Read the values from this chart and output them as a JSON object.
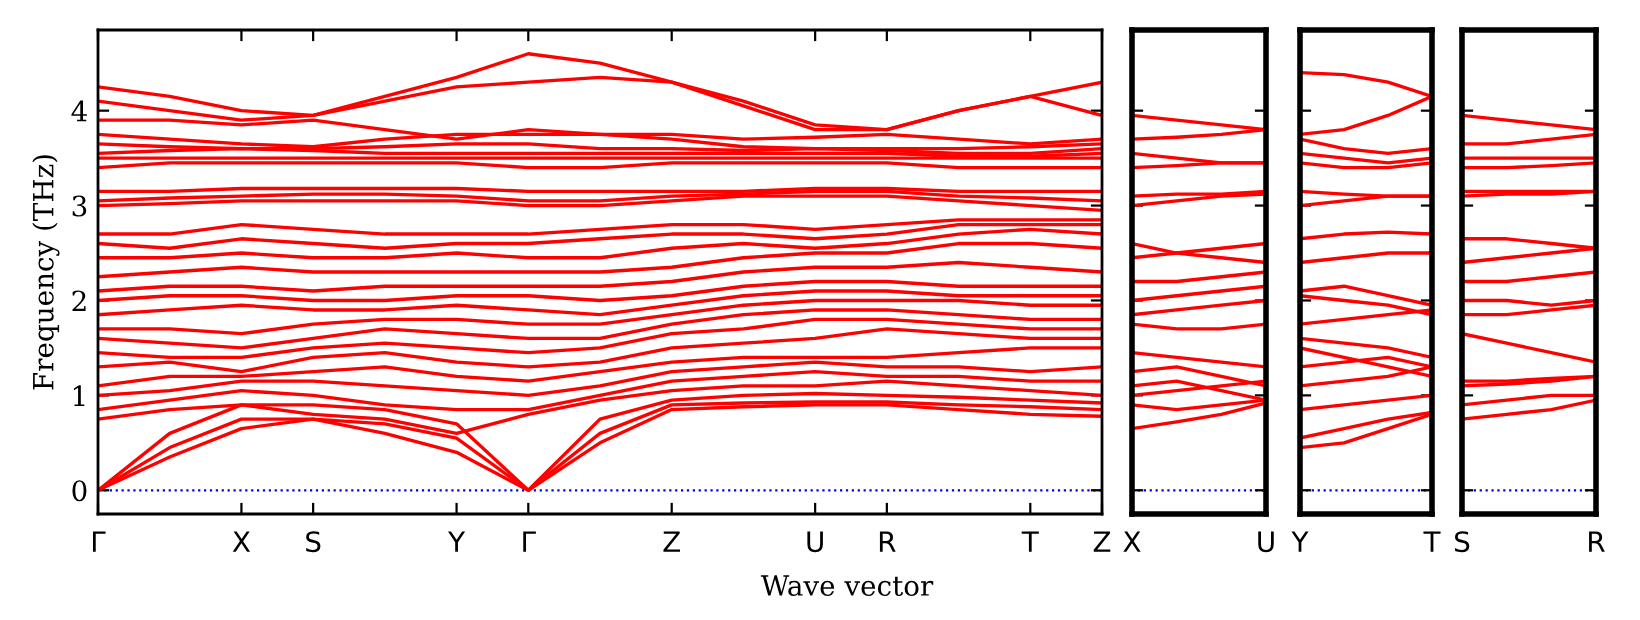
{
  "chart_data": [
    {
      "type": "line",
      "ylabel": "Frequency (THz)",
      "xlabel": "Wave vector",
      "ylim": [
        -0.25,
        4.85
      ],
      "yticks": [
        0,
        1,
        2,
        3,
        4
      ],
      "categories": [
        "Γ",
        null,
        "X",
        "S",
        null,
        "Y",
        "Γ",
        null,
        "Z",
        null,
        "U",
        "R",
        null,
        "T",
        "Z"
      ],
      "ref_lines": [
        {
          "axis": "y",
          "value": 0,
          "color": "#0000ff",
          "line_style": "dotted"
        }
      ],
      "grid": false,
      "legend": false,
      "marker": "none",
      "line_style": "solid",
      "series": [
        {
          "color": "#ff0000",
          "values": [
            0,
            0.35,
            0.65,
            0.75,
            0.6,
            0.4,
            0,
            0.5,
            0.85,
            0.88,
            0.9,
            0.9,
            0.85,
            0.8,
            0.78
          ]
        },
        {
          "color": "#ff0000",
          "values": [
            0,
            0.45,
            0.75,
            0.75,
            0.7,
            0.55,
            0,
            0.6,
            0.9,
            0.92,
            0.93,
            0.93,
            0.9,
            0.88,
            0.85
          ]
        },
        {
          "color": "#ff0000",
          "values": [
            0,
            0.6,
            0.9,
            0.9,
            0.85,
            0.7,
            0,
            0.75,
            0.95,
            1.0,
            1.02,
            1.0,
            0.98,
            0.95,
            0.92
          ]
        },
        {
          "color": "#ff0000",
          "values": [
            0.75,
            0.85,
            0.9,
            0.8,
            0.75,
            0.6,
            0.8,
            0.95,
            1.05,
            1.1,
            1.1,
            1.15,
            1.1,
            1.05,
            1.0
          ]
        },
        {
          "color": "#ff0000",
          "values": [
            0.85,
            0.95,
            1.05,
            1.0,
            0.9,
            0.85,
            0.85,
            1.0,
            1.15,
            1.2,
            1.25,
            1.2,
            1.2,
            1.15,
            1.15
          ]
        },
        {
          "color": "#ff0000",
          "values": [
            1.0,
            1.05,
            1.15,
            1.15,
            1.1,
            1.05,
            1.0,
            1.1,
            1.25,
            1.3,
            1.35,
            1.3,
            1.3,
            1.25,
            1.3
          ]
        },
        {
          "color": "#ff0000",
          "values": [
            1.1,
            1.2,
            1.2,
            1.25,
            1.3,
            1.2,
            1.15,
            1.25,
            1.35,
            1.4,
            1.4,
            1.4,
            1.45,
            1.5,
            1.5
          ]
        },
        {
          "color": "#ff0000",
          "values": [
            1.3,
            1.35,
            1.25,
            1.4,
            1.45,
            1.35,
            1.3,
            1.35,
            1.5,
            1.55,
            1.6,
            1.7,
            1.65,
            1.6,
            1.6
          ]
        },
        {
          "color": "#ff0000",
          "values": [
            1.45,
            1.4,
            1.4,
            1.5,
            1.55,
            1.5,
            1.45,
            1.5,
            1.65,
            1.7,
            1.8,
            1.8,
            1.75,
            1.7,
            1.7
          ]
        },
        {
          "color": "#ff0000",
          "values": [
            1.6,
            1.55,
            1.5,
            1.6,
            1.7,
            1.65,
            1.6,
            1.6,
            1.75,
            1.85,
            1.9,
            1.9,
            1.85,
            1.8,
            1.8
          ]
        },
        {
          "color": "#ff0000",
          "values": [
            1.7,
            1.7,
            1.65,
            1.75,
            1.8,
            1.8,
            1.75,
            1.75,
            1.85,
            1.95,
            2.0,
            2.0,
            2.0,
            1.95,
            1.95
          ]
        },
        {
          "color": "#ff0000",
          "values": [
            1.85,
            1.9,
            1.95,
            1.9,
            1.9,
            1.95,
            1.9,
            1.85,
            1.95,
            2.05,
            2.1,
            2.1,
            2.05,
            2.05,
            2.05
          ]
        },
        {
          "color": "#ff0000",
          "values": [
            2.0,
            2.05,
            2.05,
            2.0,
            2.0,
            2.05,
            2.05,
            2.0,
            2.05,
            2.15,
            2.2,
            2.2,
            2.15,
            2.15,
            2.15
          ]
        },
        {
          "color": "#ff0000",
          "values": [
            2.1,
            2.15,
            2.15,
            2.1,
            2.15,
            2.15,
            2.15,
            2.15,
            2.2,
            2.3,
            2.35,
            2.35,
            2.4,
            2.35,
            2.3
          ]
        },
        {
          "color": "#ff0000",
          "values": [
            2.25,
            2.3,
            2.35,
            2.3,
            2.3,
            2.3,
            2.3,
            2.3,
            2.35,
            2.45,
            2.5,
            2.5,
            2.6,
            2.6,
            2.55
          ]
        },
        {
          "color": "#ff0000",
          "values": [
            2.45,
            2.45,
            2.5,
            2.45,
            2.45,
            2.5,
            2.45,
            2.45,
            2.55,
            2.6,
            2.55,
            2.6,
            2.7,
            2.75,
            2.7
          ]
        },
        {
          "color": "#ff0000",
          "values": [
            2.6,
            2.55,
            2.65,
            2.6,
            2.55,
            2.6,
            2.6,
            2.65,
            2.7,
            2.7,
            2.65,
            2.7,
            2.8,
            2.8,
            2.8
          ]
        },
        {
          "color": "#ff0000",
          "values": [
            2.7,
            2.7,
            2.8,
            2.75,
            2.7,
            2.7,
            2.7,
            2.75,
            2.8,
            2.8,
            2.75,
            2.8,
            2.85,
            2.85,
            2.85
          ]
        },
        {
          "color": "#ff0000",
          "values": [
            3.0,
            3.02,
            3.05,
            3.05,
            3.05,
            3.05,
            3.0,
            3.0,
            3.05,
            3.1,
            3.1,
            3.1,
            3.05,
            3.0,
            2.95
          ]
        },
        {
          "color": "#ff0000",
          "values": [
            3.05,
            3.08,
            3.1,
            3.12,
            3.12,
            3.1,
            3.05,
            3.05,
            3.1,
            3.12,
            3.15,
            3.15,
            3.1,
            3.08,
            3.05
          ]
        },
        {
          "color": "#ff0000",
          "values": [
            3.15,
            3.15,
            3.18,
            3.18,
            3.18,
            3.18,
            3.15,
            3.15,
            3.15,
            3.15,
            3.18,
            3.18,
            3.15,
            3.15,
            3.15
          ]
        },
        {
          "color": "#ff0000",
          "values": [
            3.4,
            3.45,
            3.45,
            3.45,
            3.45,
            3.45,
            3.4,
            3.4,
            3.45,
            3.45,
            3.45,
            3.45,
            3.4,
            3.4,
            3.4
          ]
        },
        {
          "color": "#ff0000",
          "values": [
            3.5,
            3.5,
            3.5,
            3.5,
            3.5,
            3.5,
            3.5,
            3.5,
            3.5,
            3.5,
            3.5,
            3.5,
            3.5,
            3.5,
            3.5
          ]
        },
        {
          "color": "#ff0000",
          "values": [
            3.55,
            3.58,
            3.6,
            3.58,
            3.55,
            3.55,
            3.55,
            3.55,
            3.55,
            3.55,
            3.55,
            3.55,
            3.52,
            3.52,
            3.55
          ]
        },
        {
          "color": "#ff0000",
          "values": [
            3.65,
            3.62,
            3.6,
            3.6,
            3.62,
            3.65,
            3.65,
            3.6,
            3.6,
            3.58,
            3.6,
            3.58,
            3.55,
            3.55,
            3.6
          ]
        },
        {
          "color": "#ff0000",
          "values": [
            3.75,
            3.7,
            3.65,
            3.62,
            3.7,
            3.75,
            3.75,
            3.75,
            3.7,
            3.62,
            3.6,
            3.6,
            3.6,
            3.62,
            3.65
          ]
        },
        {
          "color": "#ff0000",
          "values": [
            3.9,
            3.9,
            3.85,
            3.9,
            3.8,
            3.7,
            3.8,
            3.75,
            3.75,
            3.7,
            3.72,
            3.75,
            3.7,
            3.65,
            3.7
          ]
        },
        {
          "color": "#ff0000",
          "values": [
            4.1,
            4.0,
            3.9,
            3.95,
            4.1,
            4.25,
            4.3,
            4.35,
            4.3,
            4.05,
            3.8,
            3.8,
            4.0,
            4.15,
            3.95
          ]
        },
        {
          "color": "#ff0000",
          "values": [
            4.25,
            4.15,
            4.0,
            3.95,
            4.15,
            4.35,
            4.6,
            4.5,
            4.3,
            4.1,
            3.85,
            3.8,
            4.0,
            4.15,
            4.3
          ]
        }
      ]
    },
    {
      "type": "line",
      "ylim": [
        -0.25,
        4.85
      ],
      "tick_labels": "x",
      "categories": [
        "X",
        null,
        null,
        "U"
      ],
      "ref_lines": [
        {
          "axis": "y",
          "value": 0,
          "color": "#0000ff",
          "line_style": "dotted"
        }
      ],
      "grid": false,
      "legend": false,
      "marker": "none",
      "line_style": "solid",
      "series": [
        {
          "color": "#ff0000",
          "values": [
            0.65,
            0.72,
            0.8,
            0.92
          ]
        },
        {
          "color": "#ff0000",
          "values": [
            0.9,
            0.85,
            0.9,
            0.95
          ]
        },
        {
          "color": "#ff0000",
          "values": [
            1.0,
            1.05,
            1.1,
            1.15
          ]
        },
        {
          "color": "#ff0000",
          "values": [
            1.1,
            1.15,
            1.05,
            0.95
          ]
        },
        {
          "color": "#ff0000",
          "values": [
            1.25,
            1.3,
            1.2,
            1.1
          ]
        },
        {
          "color": "#ff0000",
          "values": [
            1.45,
            1.4,
            1.35,
            1.3
          ]
        },
        {
          "color": "#ff0000",
          "values": [
            1.75,
            1.7,
            1.7,
            1.75
          ]
        },
        {
          "color": "#ff0000",
          "values": [
            1.85,
            1.9,
            1.95,
            2.0
          ]
        },
        {
          "color": "#ff0000",
          "values": [
            2.0,
            2.05,
            2.1,
            2.15
          ]
        },
        {
          "color": "#ff0000",
          "values": [
            2.2,
            2.2,
            2.25,
            2.3
          ]
        },
        {
          "color": "#ff0000",
          "values": [
            2.45,
            2.5,
            2.55,
            2.6
          ]
        },
        {
          "color": "#ff0000",
          "values": [
            2.6,
            2.5,
            2.45,
            2.4
          ]
        },
        {
          "color": "#ff0000",
          "values": [
            3.0,
            3.05,
            3.1,
            3.12
          ]
        },
        {
          "color": "#ff0000",
          "values": [
            3.1,
            3.12,
            3.12,
            3.15
          ]
        },
        {
          "color": "#ff0000",
          "values": [
            3.4,
            3.42,
            3.45,
            3.45
          ]
        },
        {
          "color": "#ff0000",
          "values": [
            3.55,
            3.5,
            3.45,
            3.45
          ]
        },
        {
          "color": "#ff0000",
          "values": [
            3.7,
            3.72,
            3.75,
            3.8
          ]
        },
        {
          "color": "#ff0000",
          "values": [
            3.95,
            3.9,
            3.85,
            3.8
          ]
        }
      ]
    },
    {
      "type": "line",
      "ylim": [
        -0.25,
        4.85
      ],
      "tick_labels": "x",
      "categories": [
        "Y",
        null,
        null,
        "T"
      ],
      "ref_lines": [
        {
          "axis": "y",
          "value": 0,
          "color": "#0000ff",
          "line_style": "dotted"
        }
      ],
      "grid": false,
      "legend": false,
      "marker": "none",
      "line_style": "solid",
      "series": [
        {
          "color": "#ff0000",
          "values": [
            0.45,
            0.5,
            0.65,
            0.8
          ]
        },
        {
          "color": "#ff0000",
          "values": [
            0.55,
            0.65,
            0.75,
            0.82
          ]
        },
        {
          "color": "#ff0000",
          "values": [
            0.85,
            0.9,
            0.95,
            1.0
          ]
        },
        {
          "color": "#ff0000",
          "values": [
            1.1,
            1.15,
            1.2,
            1.3
          ]
        },
        {
          "color": "#ff0000",
          "values": [
            1.3,
            1.35,
            1.4,
            1.3
          ]
        },
        {
          "color": "#ff0000",
          "values": [
            1.5,
            1.4,
            1.3,
            1.2
          ]
        },
        {
          "color": "#ff0000",
          "values": [
            1.6,
            1.55,
            1.5,
            1.4
          ]
        },
        {
          "color": "#ff0000",
          "values": [
            1.75,
            1.8,
            1.85,
            1.9
          ]
        },
        {
          "color": "#ff0000",
          "values": [
            2.05,
            2.0,
            1.95,
            1.85
          ]
        },
        {
          "color": "#ff0000",
          "values": [
            2.1,
            2.15,
            2.05,
            1.95
          ]
        },
        {
          "color": "#ff0000",
          "values": [
            2.4,
            2.45,
            2.5,
            2.5
          ]
        },
        {
          "color": "#ff0000",
          "values": [
            2.65,
            2.7,
            2.72,
            2.7
          ]
        },
        {
          "color": "#ff0000",
          "values": [
            3.0,
            3.05,
            3.1,
            3.1
          ]
        },
        {
          "color": "#ff0000",
          "values": [
            3.15,
            3.12,
            3.1,
            3.1
          ]
        },
        {
          "color": "#ff0000",
          "values": [
            3.45,
            3.4,
            3.4,
            3.45
          ]
        },
        {
          "color": "#ff0000",
          "values": [
            3.55,
            3.5,
            3.45,
            3.5
          ]
        },
        {
          "color": "#ff0000",
          "values": [
            3.7,
            3.6,
            3.55,
            3.6
          ]
        },
        {
          "color": "#ff0000",
          "values": [
            3.75,
            3.8,
            3.95,
            4.15
          ]
        },
        {
          "color": "#ff0000",
          "values": [
            4.4,
            4.38,
            4.3,
            4.15
          ]
        }
      ]
    },
    {
      "type": "line",
      "ylim": [
        -0.25,
        4.85
      ],
      "tick_labels": "x",
      "categories": [
        "S",
        null,
        null,
        "R"
      ],
      "ref_lines": [
        {
          "axis": "y",
          "value": 0,
          "color": "#0000ff",
          "line_style": "dotted"
        }
      ],
      "grid": false,
      "legend": false,
      "marker": "none",
      "line_style": "solid",
      "series": [
        {
          "color": "#ff0000",
          "values": [
            0.75,
            0.8,
            0.85,
            0.95
          ]
        },
        {
          "color": "#ff0000",
          "values": [
            0.9,
            0.95,
            1.0,
            1.0
          ]
        },
        {
          "color": "#ff0000",
          "values": [
            1.1,
            1.12,
            1.15,
            1.2
          ]
        },
        {
          "color": "#ff0000",
          "values": [
            1.15,
            1.15,
            1.18,
            1.2
          ]
        },
        {
          "color": "#ff0000",
          "values": [
            1.65,
            1.55,
            1.45,
            1.35
          ]
        },
        {
          "color": "#ff0000",
          "values": [
            1.85,
            1.85,
            1.9,
            1.95
          ]
        },
        {
          "color": "#ff0000",
          "values": [
            2.0,
            2.0,
            1.95,
            2.0
          ]
        },
        {
          "color": "#ff0000",
          "values": [
            2.2,
            2.2,
            2.25,
            2.3
          ]
        },
        {
          "color": "#ff0000",
          "values": [
            2.4,
            2.45,
            2.5,
            2.55
          ]
        },
        {
          "color": "#ff0000",
          "values": [
            2.65,
            2.65,
            2.6,
            2.55
          ]
        },
        {
          "color": "#ff0000",
          "values": [
            3.1,
            3.12,
            3.12,
            3.15
          ]
        },
        {
          "color": "#ff0000",
          "values": [
            3.15,
            3.15,
            3.15,
            3.15
          ]
        },
        {
          "color": "#ff0000",
          "values": [
            3.4,
            3.4,
            3.42,
            3.45
          ]
        },
        {
          "color": "#ff0000",
          "values": [
            3.5,
            3.5,
            3.5,
            3.5
          ]
        },
        {
          "color": "#ff0000",
          "values": [
            3.65,
            3.65,
            3.7,
            3.75
          ]
        },
        {
          "color": "#ff0000",
          "values": [
            3.95,
            3.9,
            3.85,
            3.8
          ]
        }
      ]
    }
  ]
}
